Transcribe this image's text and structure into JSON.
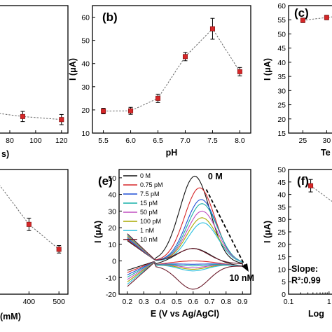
{
  "chart_data": [
    {
      "panel": "a",
      "type": "scatter",
      "x_ticks": [
        "80",
        "100",
        "120"
      ],
      "xlabel_fragment": "s)",
      "x": [
        90,
        120
      ],
      "y": [
        21.5,
        20.3
      ],
      "yerr": [
        2.0,
        2.0
      ],
      "ylim": [
        15,
        65
      ],
      "xlim": [
        67,
        125
      ]
    },
    {
      "panel": "b",
      "type": "scatter",
      "label": "(b)",
      "ylabel": "I (μA)",
      "xlabel": "pH",
      "x": [
        5.5,
        6.0,
        6.5,
        7.0,
        7.5,
        8.0
      ],
      "y": [
        19.5,
        19.6,
        25.0,
        43.0,
        55.0,
        36.5
      ],
      "yerr": [
        1.2,
        1.5,
        1.8,
        1.8,
        4.5,
        1.8
      ],
      "xlim": [
        5.3,
        8.2
      ],
      "ylim": [
        10,
        65
      ],
      "x_ticks": [
        "5.5",
        "6.0",
        "6.5",
        "7.0",
        "7.5",
        "8.0"
      ],
      "y_ticks": [
        "10",
        "20",
        "30",
        "40",
        "50",
        "60"
      ]
    },
    {
      "panel": "c",
      "type": "scatter",
      "label": "(c)",
      "ylabel": "I (μA)",
      "xlabel_fragment": "Te",
      "x": [
        25,
        30
      ],
      "y": [
        54.8,
        55.8
      ],
      "yerr": [
        0.8,
        0.8
      ],
      "xlim": [
        22,
        32
      ],
      "ylim": [
        15,
        60
      ],
      "x_ticks": [
        "25",
        "30"
      ],
      "y_ticks": [
        "15",
        "20",
        "25",
        "30",
        "35",
        "40",
        "45",
        "50",
        "55",
        "60"
      ]
    },
    {
      "panel": "d",
      "type": "scatter",
      "x_ticks": [
        "400",
        "500"
      ],
      "xlabel_fragment": "(mM)",
      "x": [
        400,
        500
      ],
      "y": [
        28.0,
        18.0
      ],
      "yerr": [
        2.5,
        1.5
      ],
      "xlim": [
        280,
        530
      ],
      "ylim": [
        0,
        50
      ]
    },
    {
      "panel": "e",
      "type": "line",
      "label": "(e)",
      "ylabel": "I (μA)",
      "xlabel": "E (V vs Ag/AgCl)",
      "xlim": [
        0.15,
        0.95
      ],
      "ylim": [
        -20,
        55
      ],
      "x_ticks": [
        "0.2",
        "0.3",
        "0.4",
        "0.5",
        "0.6",
        "0.7",
        "0.8",
        "0.9"
      ],
      "y_ticks": [
        "-20",
        "-10",
        "0",
        "10",
        "20",
        "30",
        "40",
        "50"
      ],
      "arrow_start_label": "0 M",
      "arrow_end_label": "10 nM",
      "series": [
        {
          "name": "0 M",
          "color": "#111111",
          "peak": 51,
          "peak_x": 0.61,
          "trough": 7.5
        },
        {
          "name": "0.75 pM",
          "color": "#d62728",
          "peak": 44,
          "peak_x": 0.64,
          "trough": 0
        },
        {
          "name": "7.5 pM",
          "color": "#1f4fd6",
          "peak": 37,
          "peak_x": 0.65,
          "trough": -2
        },
        {
          "name": "15 pM",
          "color": "#17b0a8",
          "peak": 34.5,
          "peak_x": 0.655,
          "trough": -3
        },
        {
          "name": "50 pM",
          "color": "#c04fc0",
          "peak": 30,
          "peak_x": 0.655,
          "trough": -4
        },
        {
          "name": "100 pM",
          "color": "#a8a800",
          "peak": 26,
          "peak_x": 0.655,
          "trough": -5
        },
        {
          "name": "1 nM",
          "color": "#2bbfdf",
          "peak": 23,
          "peak_x": 0.66,
          "trough": -6
        },
        {
          "name": "10 nM",
          "color": "#6b1b2b",
          "peak": 7.5,
          "peak_x": 0.6,
          "trough": -17
        }
      ]
    },
    {
      "panel": "f",
      "type": "scatter",
      "label": "(f)",
      "ylabel": "I (μA)",
      "xlabel_fragment": "Log",
      "slope_text": "Slope:",
      "r2_text": "R²:0.99",
      "x_ticks": [
        "0.1",
        "1"
      ],
      "y_ticks": [
        "0",
        "5",
        "10",
        "15",
        "20",
        "25",
        "30",
        "35",
        "40",
        "45",
        "50"
      ],
      "x": [
        0.75
      ],
      "y": [
        43.5
      ],
      "yerr": [
        2.5
      ],
      "xlim": [
        0.1,
        1.5
      ],
      "ylim": [
        0,
        50
      ]
    }
  ]
}
